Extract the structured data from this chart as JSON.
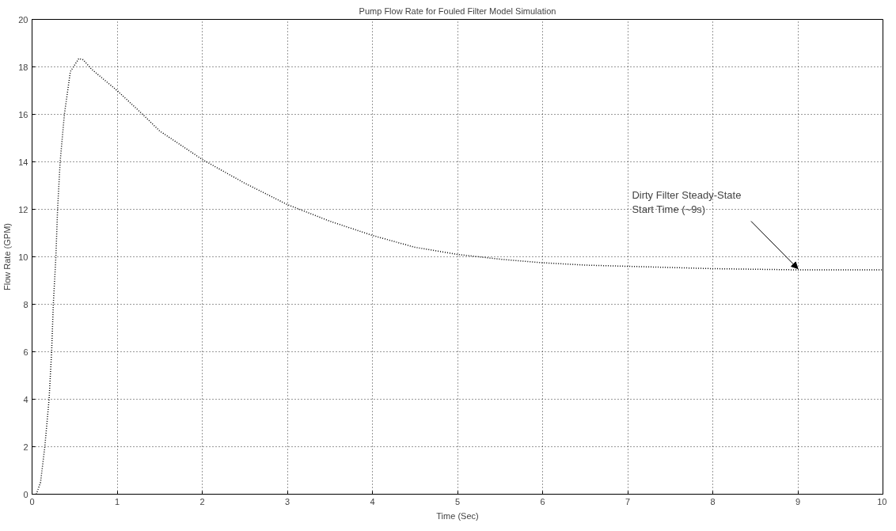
{
  "chart_data": {
    "type": "line",
    "title": "Pump Flow Rate for Fouled Filter Model Simulation",
    "xlabel": "Time (Sec)",
    "ylabel": "Flow Rate (GPM)",
    "x": [
      0.05,
      0.1,
      0.15,
      0.2,
      0.23,
      0.25,
      0.28,
      0.3,
      0.33,
      0.38,
      0.45,
      0.55,
      0.6,
      0.7,
      1.0,
      1.3,
      1.5,
      2.0,
      2.5,
      3.0,
      3.5,
      4.0,
      4.5,
      5.0,
      5.5,
      6.0,
      6.5,
      7.0,
      7.5,
      8.0,
      9.0,
      10.0
    ],
    "series": [
      {
        "color": "#000000",
        "values": [
          0,
          0.5,
          2,
          4,
          6,
          8,
          10,
          12,
          14,
          16,
          17.8,
          18.35,
          18.3,
          17.9,
          17.0,
          16.0,
          15.3,
          14.1,
          13.1,
          12.2,
          11.5,
          10.9,
          10.4,
          10.1,
          9.9,
          9.75,
          9.65,
          9.6,
          9.55,
          9.5,
          9.45,
          9.45
        ]
      }
    ],
    "xlim": [
      0,
      10
    ],
    "ylim": [
      0,
      20
    ],
    "xticks": [
      0,
      1,
      2,
      3,
      4,
      5,
      6,
      7,
      8,
      9,
      10
    ],
    "yticks": [
      0,
      2,
      4,
      6,
      8,
      10,
      12,
      14,
      16,
      18,
      20
    ],
    "grid": true,
    "line_style": "dotted",
    "marker": "none",
    "annotations": [
      {
        "text": "Dirty Filter Steady-State\nStart Time (~9s)",
        "x": 9,
        "y": 9.5
      }
    ]
  }
}
